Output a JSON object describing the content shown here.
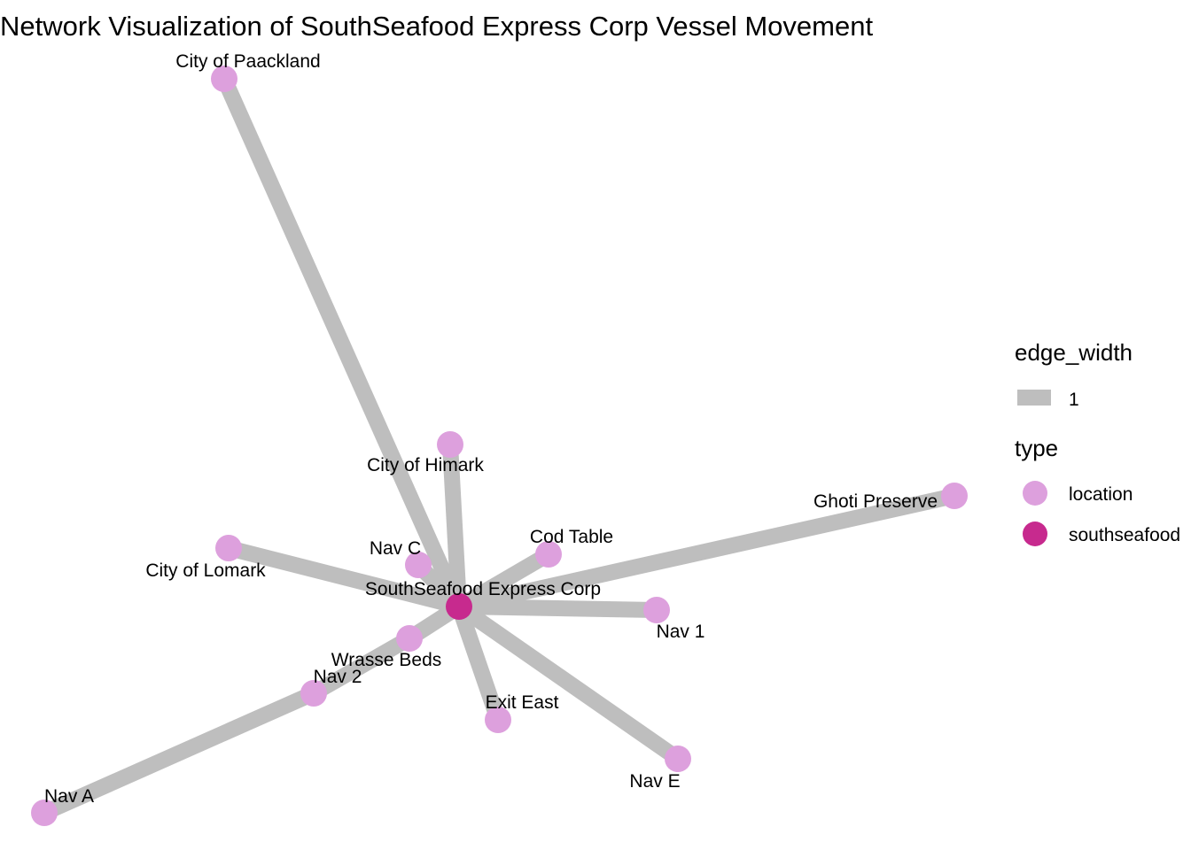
{
  "title": "Network Visualization of SouthSeafood Express Corp Vessel Movement",
  "colors": {
    "edge": "#bebebe",
    "location": "#dda0dd",
    "southseafood": "#c72a8e",
    "background": "#ffffff"
  },
  "nodes": [
    {
      "id": "sec",
      "label": "SouthSeafood Express Corp",
      "type": "southseafood"
    },
    {
      "id": "paackland",
      "label": "City of Paackland",
      "type": "location"
    },
    {
      "id": "himark",
      "label": "City of Himark",
      "type": "location"
    },
    {
      "id": "lomark",
      "label": "City of Lomark",
      "type": "location"
    },
    {
      "id": "navc",
      "label": "Nav C",
      "type": "location"
    },
    {
      "id": "codtable",
      "label": "Cod Table",
      "type": "location"
    },
    {
      "id": "ghoti",
      "label": "Ghoti Preserve",
      "type": "location"
    },
    {
      "id": "nav1",
      "label": "Nav 1",
      "type": "location"
    },
    {
      "id": "wrasse",
      "label": "Wrasse Beds",
      "type": "location"
    },
    {
      "id": "nav2",
      "label": "Nav 2",
      "type": "location"
    },
    {
      "id": "exiteast",
      "label": "Exit East",
      "type": "location"
    },
    {
      "id": "nave",
      "label": "Nav E",
      "type": "location"
    },
    {
      "id": "nava",
      "label": "Nav A",
      "type": "location"
    }
  ],
  "edges": [
    {
      "from": "sec",
      "to": "paackland",
      "edge_width": 1
    },
    {
      "from": "sec",
      "to": "himark",
      "edge_width": 1
    },
    {
      "from": "sec",
      "to": "lomark",
      "edge_width": 1
    },
    {
      "from": "sec",
      "to": "navc",
      "edge_width": 1
    },
    {
      "from": "sec",
      "to": "codtable",
      "edge_width": 1
    },
    {
      "from": "sec",
      "to": "ghoti",
      "edge_width": 1
    },
    {
      "from": "sec",
      "to": "nav1",
      "edge_width": 1
    },
    {
      "from": "sec",
      "to": "wrasse",
      "edge_width": 1
    },
    {
      "from": "sec",
      "to": "exiteast",
      "edge_width": 1
    },
    {
      "from": "sec",
      "to": "nave",
      "edge_width": 1
    },
    {
      "from": "wrasse",
      "to": "nav2",
      "edge_width": 1
    },
    {
      "from": "nav2",
      "to": "nava",
      "edge_width": 1
    }
  ],
  "legend": {
    "edge_width": {
      "title": "edge_width",
      "items": [
        {
          "label": "1"
        }
      ]
    },
    "type": {
      "title": "type",
      "items": [
        {
          "label": "location",
          "key": "location"
        },
        {
          "label": "southseafood",
          "key": "southseafood"
        }
      ]
    }
  }
}
